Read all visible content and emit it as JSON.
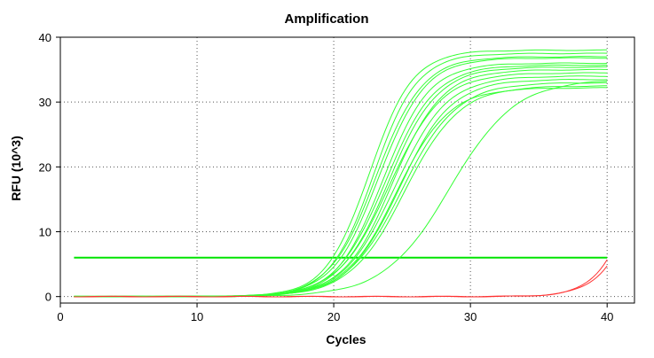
{
  "chart_data": {
    "type": "line",
    "title": "Amplification",
    "xlabel": "Cycles",
    "ylabel": "RFU (10^3)",
    "xlim": [
      0,
      42
    ],
    "ylim": [
      -1,
      40
    ],
    "xticks": [
      0,
      10,
      20,
      30,
      40
    ],
    "yticks": [
      0,
      10,
      20,
      30,
      40
    ],
    "grid": true,
    "threshold": {
      "value": 6,
      "x_range": [
        1,
        40
      ],
      "color": "#00e400"
    },
    "colors": {
      "positive": "#33ff33",
      "negative": "#ff3333",
      "threshold": "#00e400"
    },
    "series_model": "sigmoid: y = base + max / (1 + exp(-(cycle - midpoint) / slope))",
    "series": [
      {
        "group": "positive",
        "midpoint": 22.6,
        "max": 38.0,
        "slope": 1.6
      },
      {
        "group": "positive",
        "midpoint": 22.9,
        "max": 37.5,
        "slope": 1.6
      },
      {
        "group": "positive",
        "midpoint": 23.1,
        "max": 37.0,
        "slope": 1.7
      },
      {
        "group": "positive",
        "midpoint": 23.3,
        "max": 36.8,
        "slope": 1.7
      },
      {
        "group": "positive",
        "midpoint": 23.6,
        "max": 36.0,
        "slope": 1.7
      },
      {
        "group": "positive",
        "midpoint": 23.8,
        "max": 35.7,
        "slope": 1.8
      },
      {
        "group": "positive",
        "midpoint": 24.0,
        "max": 35.4,
        "slope": 1.8
      },
      {
        "group": "positive",
        "midpoint": 24.3,
        "max": 35.0,
        "slope": 1.8
      },
      {
        "group": "positive",
        "midpoint": 24.1,
        "max": 34.5,
        "slope": 1.9
      },
      {
        "group": "positive",
        "midpoint": 24.5,
        "max": 34.0,
        "slope": 1.9
      },
      {
        "group": "positive",
        "midpoint": 24.8,
        "max": 33.5,
        "slope": 1.9
      },
      {
        "group": "positive",
        "midpoint": 25.0,
        "max": 33.0,
        "slope": 2.0
      },
      {
        "group": "positive",
        "midpoint": 25.2,
        "max": 32.5,
        "slope": 2.0
      },
      {
        "group": "positive",
        "midpoint": 24.6,
        "max": 32.2,
        "slope": 1.9
      },
      {
        "group": "positive",
        "midpoint": 28.5,
        "max": 33.5,
        "slope": 2.4
      },
      {
        "group": "negative",
        "midpoint": 42.5,
        "max": 40.0,
        "slope": 1.4
      },
      {
        "group": "negative",
        "midpoint": 43.0,
        "max": 40.0,
        "slope": 1.5
      }
    ]
  }
}
